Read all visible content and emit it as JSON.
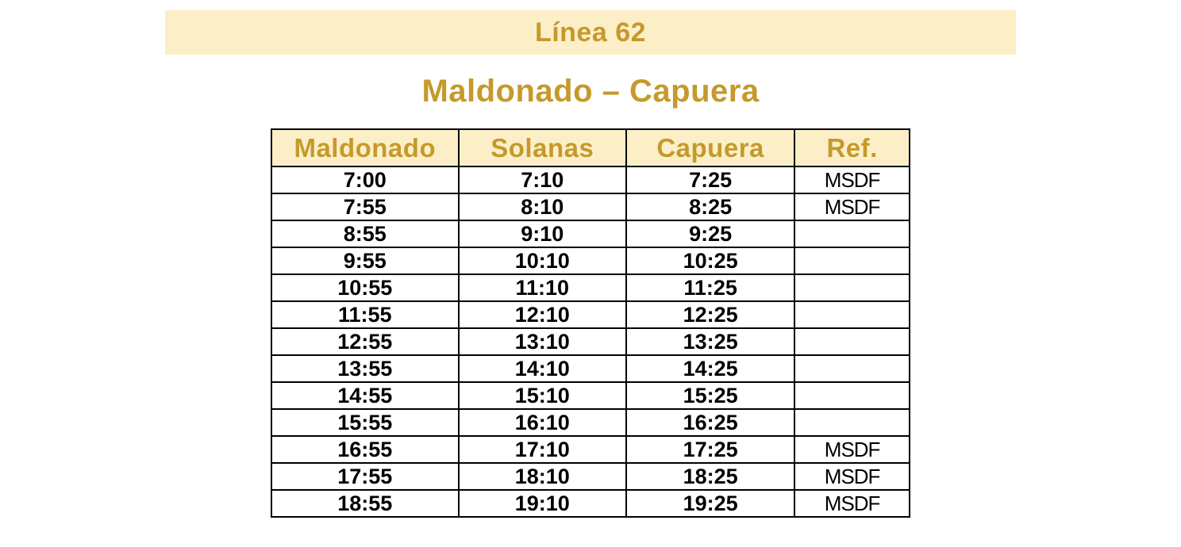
{
  "banner": {
    "title": "Línea 62",
    "bg_color": "#FCEFC8",
    "text_color": "#C6992B"
  },
  "subtitle": "Maldonado – Capuera",
  "table": {
    "header_bg": "#FCEFC8",
    "header_text_color": "#C6992B",
    "border_color": "#000000",
    "columns": [
      "Maldonado",
      "Solanas",
      "Capuera",
      "Ref."
    ],
    "rows": [
      [
        "7:00",
        "7:10",
        "7:25",
        "MSDF"
      ],
      [
        "7:55",
        "8:10",
        "8:25",
        "MSDF"
      ],
      [
        "8:55",
        "9:10",
        "9:25",
        ""
      ],
      [
        "9:55",
        "10:10",
        "10:25",
        ""
      ],
      [
        "10:55",
        "11:10",
        "11:25",
        ""
      ],
      [
        "11:55",
        "12:10",
        "12:25",
        ""
      ],
      [
        "12:55",
        "13:10",
        "13:25",
        ""
      ],
      [
        "13:55",
        "14:10",
        "14:25",
        ""
      ],
      [
        "14:55",
        "15:10",
        "15:25",
        ""
      ],
      [
        "15:55",
        "16:10",
        "16:25",
        ""
      ],
      [
        "16:55",
        "17:10",
        "17:25",
        "MSDF"
      ],
      [
        "17:55",
        "18:10",
        "18:25",
        "MSDF"
      ],
      [
        "18:55",
        "19:10",
        "19:25",
        "MSDF"
      ]
    ]
  }
}
